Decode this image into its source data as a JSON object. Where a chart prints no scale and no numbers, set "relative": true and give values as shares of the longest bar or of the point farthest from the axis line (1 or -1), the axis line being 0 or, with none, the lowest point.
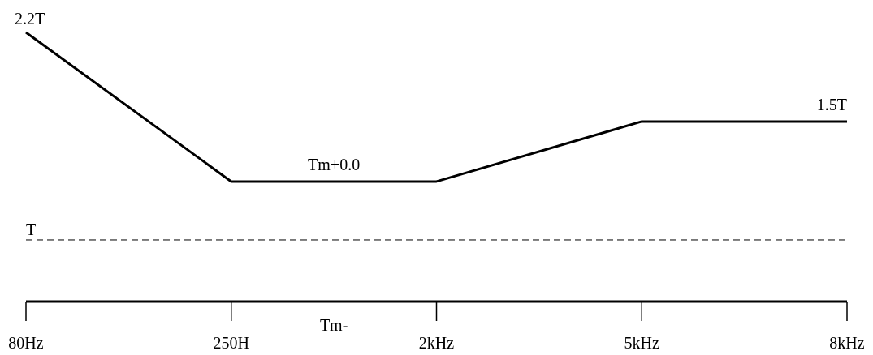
{
  "chart_data": {
    "type": "line",
    "relative": true,
    "categories": [
      "80Hz",
      "250H",
      "2kHz",
      "5kHz",
      "8kHz"
    ],
    "series": [
      {
        "color": "#000000",
        "values": [
          1,
          0.446,
          0.446,
          0.669,
          0.669
        ]
      }
    ],
    "ref_lines": [
      {
        "axis": "y",
        "value": 0.229,
        "label": "T",
        "line_style": "dashed",
        "color": "#000000"
      }
    ],
    "annotations": [
      "2.2T",
      "Tm+0.0",
      "1.5T",
      "Tm-"
    ]
  }
}
